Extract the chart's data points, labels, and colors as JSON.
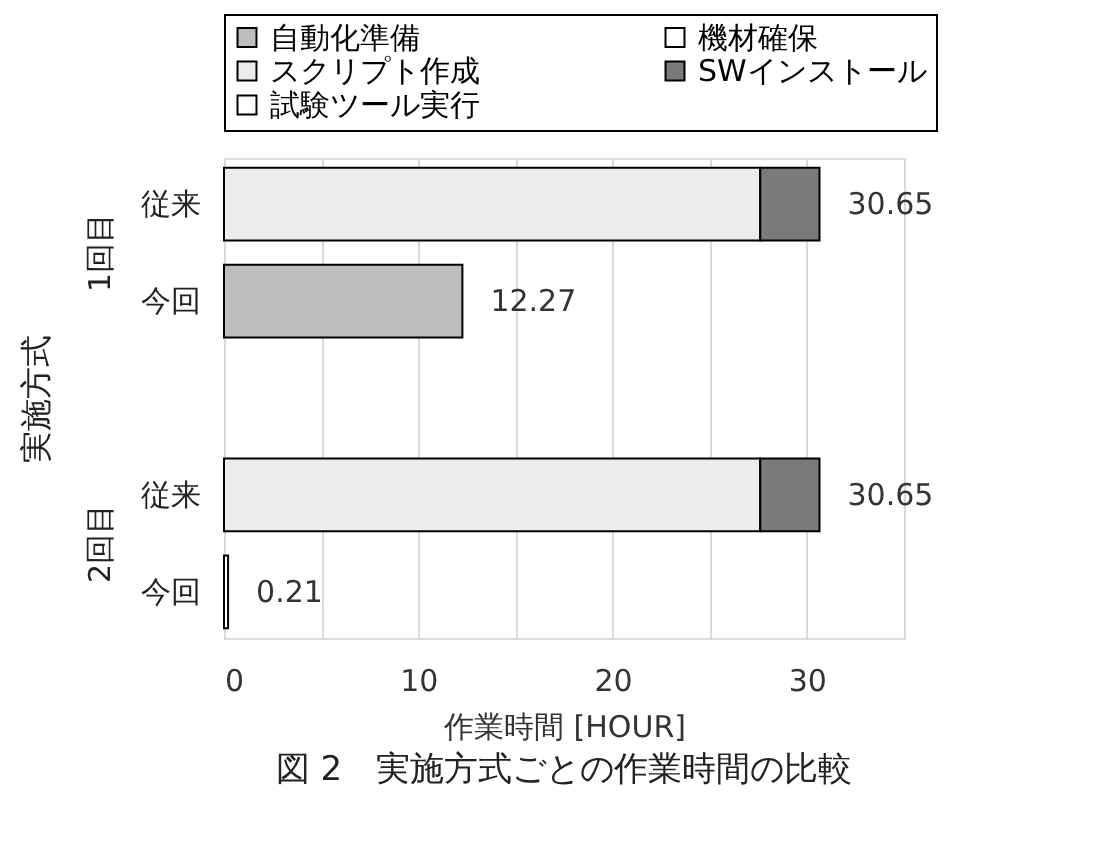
{
  "chart_data": {
    "type": "bar",
    "orientation": "horizontal",
    "stacked": true,
    "title": "図 2　実施方式ごとの作業時間の比較",
    "xlabel": "作業時間 [HOUR]",
    "ylabel": "実施方式",
    "categories": [
      "従来",
      "今回",
      null,
      "従来",
      "今回"
    ],
    "annotations": [
      "1回目",
      "2回目"
    ],
    "series": [
      {
        "name": "自動化準備",
        "color": "#bdbdbd",
        "values": [
          null,
          12.27,
          null,
          null,
          null
        ]
      },
      {
        "name": "機材確保",
        "color": "#ffffff",
        "values": [
          null,
          null,
          null,
          null,
          null
        ]
      },
      {
        "name": "スクリプト作成",
        "color": "#ececec",
        "values": [
          27.6,
          null,
          null,
          27.6,
          null
        ]
      },
      {
        "name": "SWインストール",
        "color": "#7a7a7a",
        "values": [
          3.05,
          null,
          null,
          3.05,
          null
        ]
      },
      {
        "name": "試験ツール実行",
        "color": "#ffffff",
        "values": [
          null,
          null,
          null,
          null,
          0.21
        ]
      }
    ],
    "totals": [
      "30.65",
      "12.27",
      null,
      "30.65",
      "0.21"
    ],
    "xlim": [
      0,
      35
    ],
    "xticks": [
      0,
      {
        "value": 5,
        "label": null
      },
      10,
      {
        "value": 15,
        "label": null
      },
      20,
      {
        "value": 25,
        "label": null
      },
      30,
      {
        "value": 35,
        "label": null
      }
    ],
    "grid": "x",
    "legend": "top"
  }
}
